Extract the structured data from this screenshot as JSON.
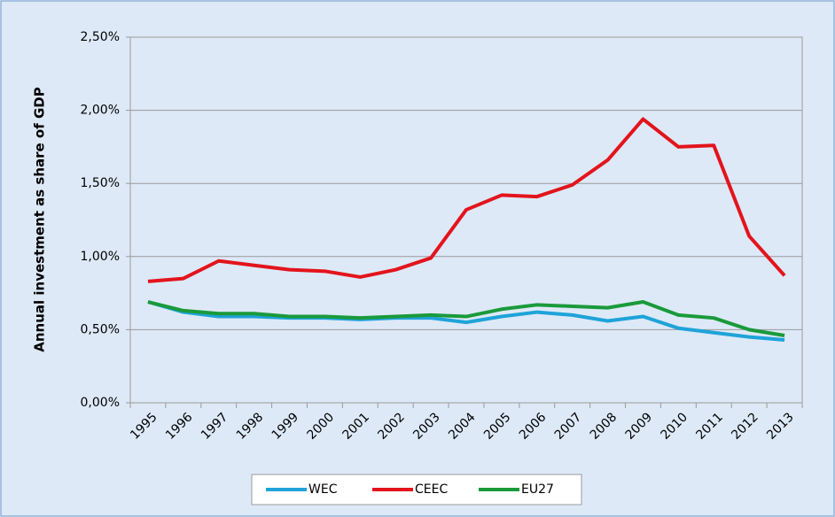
{
  "chart_data": {
    "type": "line",
    "y_axis_label": "Annual investment as share of GDP",
    "categories": [
      "1995",
      "1996",
      "1997",
      "1998",
      "1999",
      "2000",
      "2001",
      "2002",
      "2003",
      "2004",
      "2005",
      "2006",
      "2007",
      "2008",
      "2009",
      "2010",
      "2011",
      "2012",
      "2013"
    ],
    "series": [
      {
        "name": "WEC",
        "color": "#1fa3d8",
        "values": [
          0.69,
          0.62,
          0.59,
          0.59,
          0.58,
          0.58,
          0.57,
          0.58,
          0.58,
          0.55,
          0.59,
          0.62,
          0.6,
          0.56,
          0.59,
          0.51,
          0.48,
          0.45,
          0.43
        ]
      },
      {
        "name": "CEEC",
        "color": "#e3141c",
        "values": [
          0.83,
          0.85,
          0.97,
          0.94,
          0.91,
          0.9,
          0.86,
          0.91,
          0.99,
          1.32,
          1.42,
          1.41,
          1.49,
          1.66,
          1.94,
          1.75,
          1.76,
          1.14,
          0.87
        ]
      },
      {
        "name": "EU27",
        "color": "#1a9a3a",
        "values": [
          0.69,
          0.63,
          0.61,
          0.61,
          0.59,
          0.59,
          0.58,
          0.59,
          0.6,
          0.59,
          0.64,
          0.67,
          0.66,
          0.65,
          0.69,
          0.6,
          0.58,
          0.5,
          0.46
        ]
      }
    ],
    "ylim": [
      0,
      2.5
    ],
    "yticks": [
      {
        "value": 0,
        "label": "0,00%"
      },
      {
        "value": 0.5,
        "label": "0,50%"
      },
      {
        "value": 1,
        "label": "1,00%"
      },
      {
        "value": 1.5,
        "label": "1,50%"
      },
      {
        "value": 2,
        "label": "2,00%"
      },
      {
        "value": 2.5,
        "label": "2,50%"
      }
    ],
    "grid": true,
    "legend": "bottom"
  }
}
